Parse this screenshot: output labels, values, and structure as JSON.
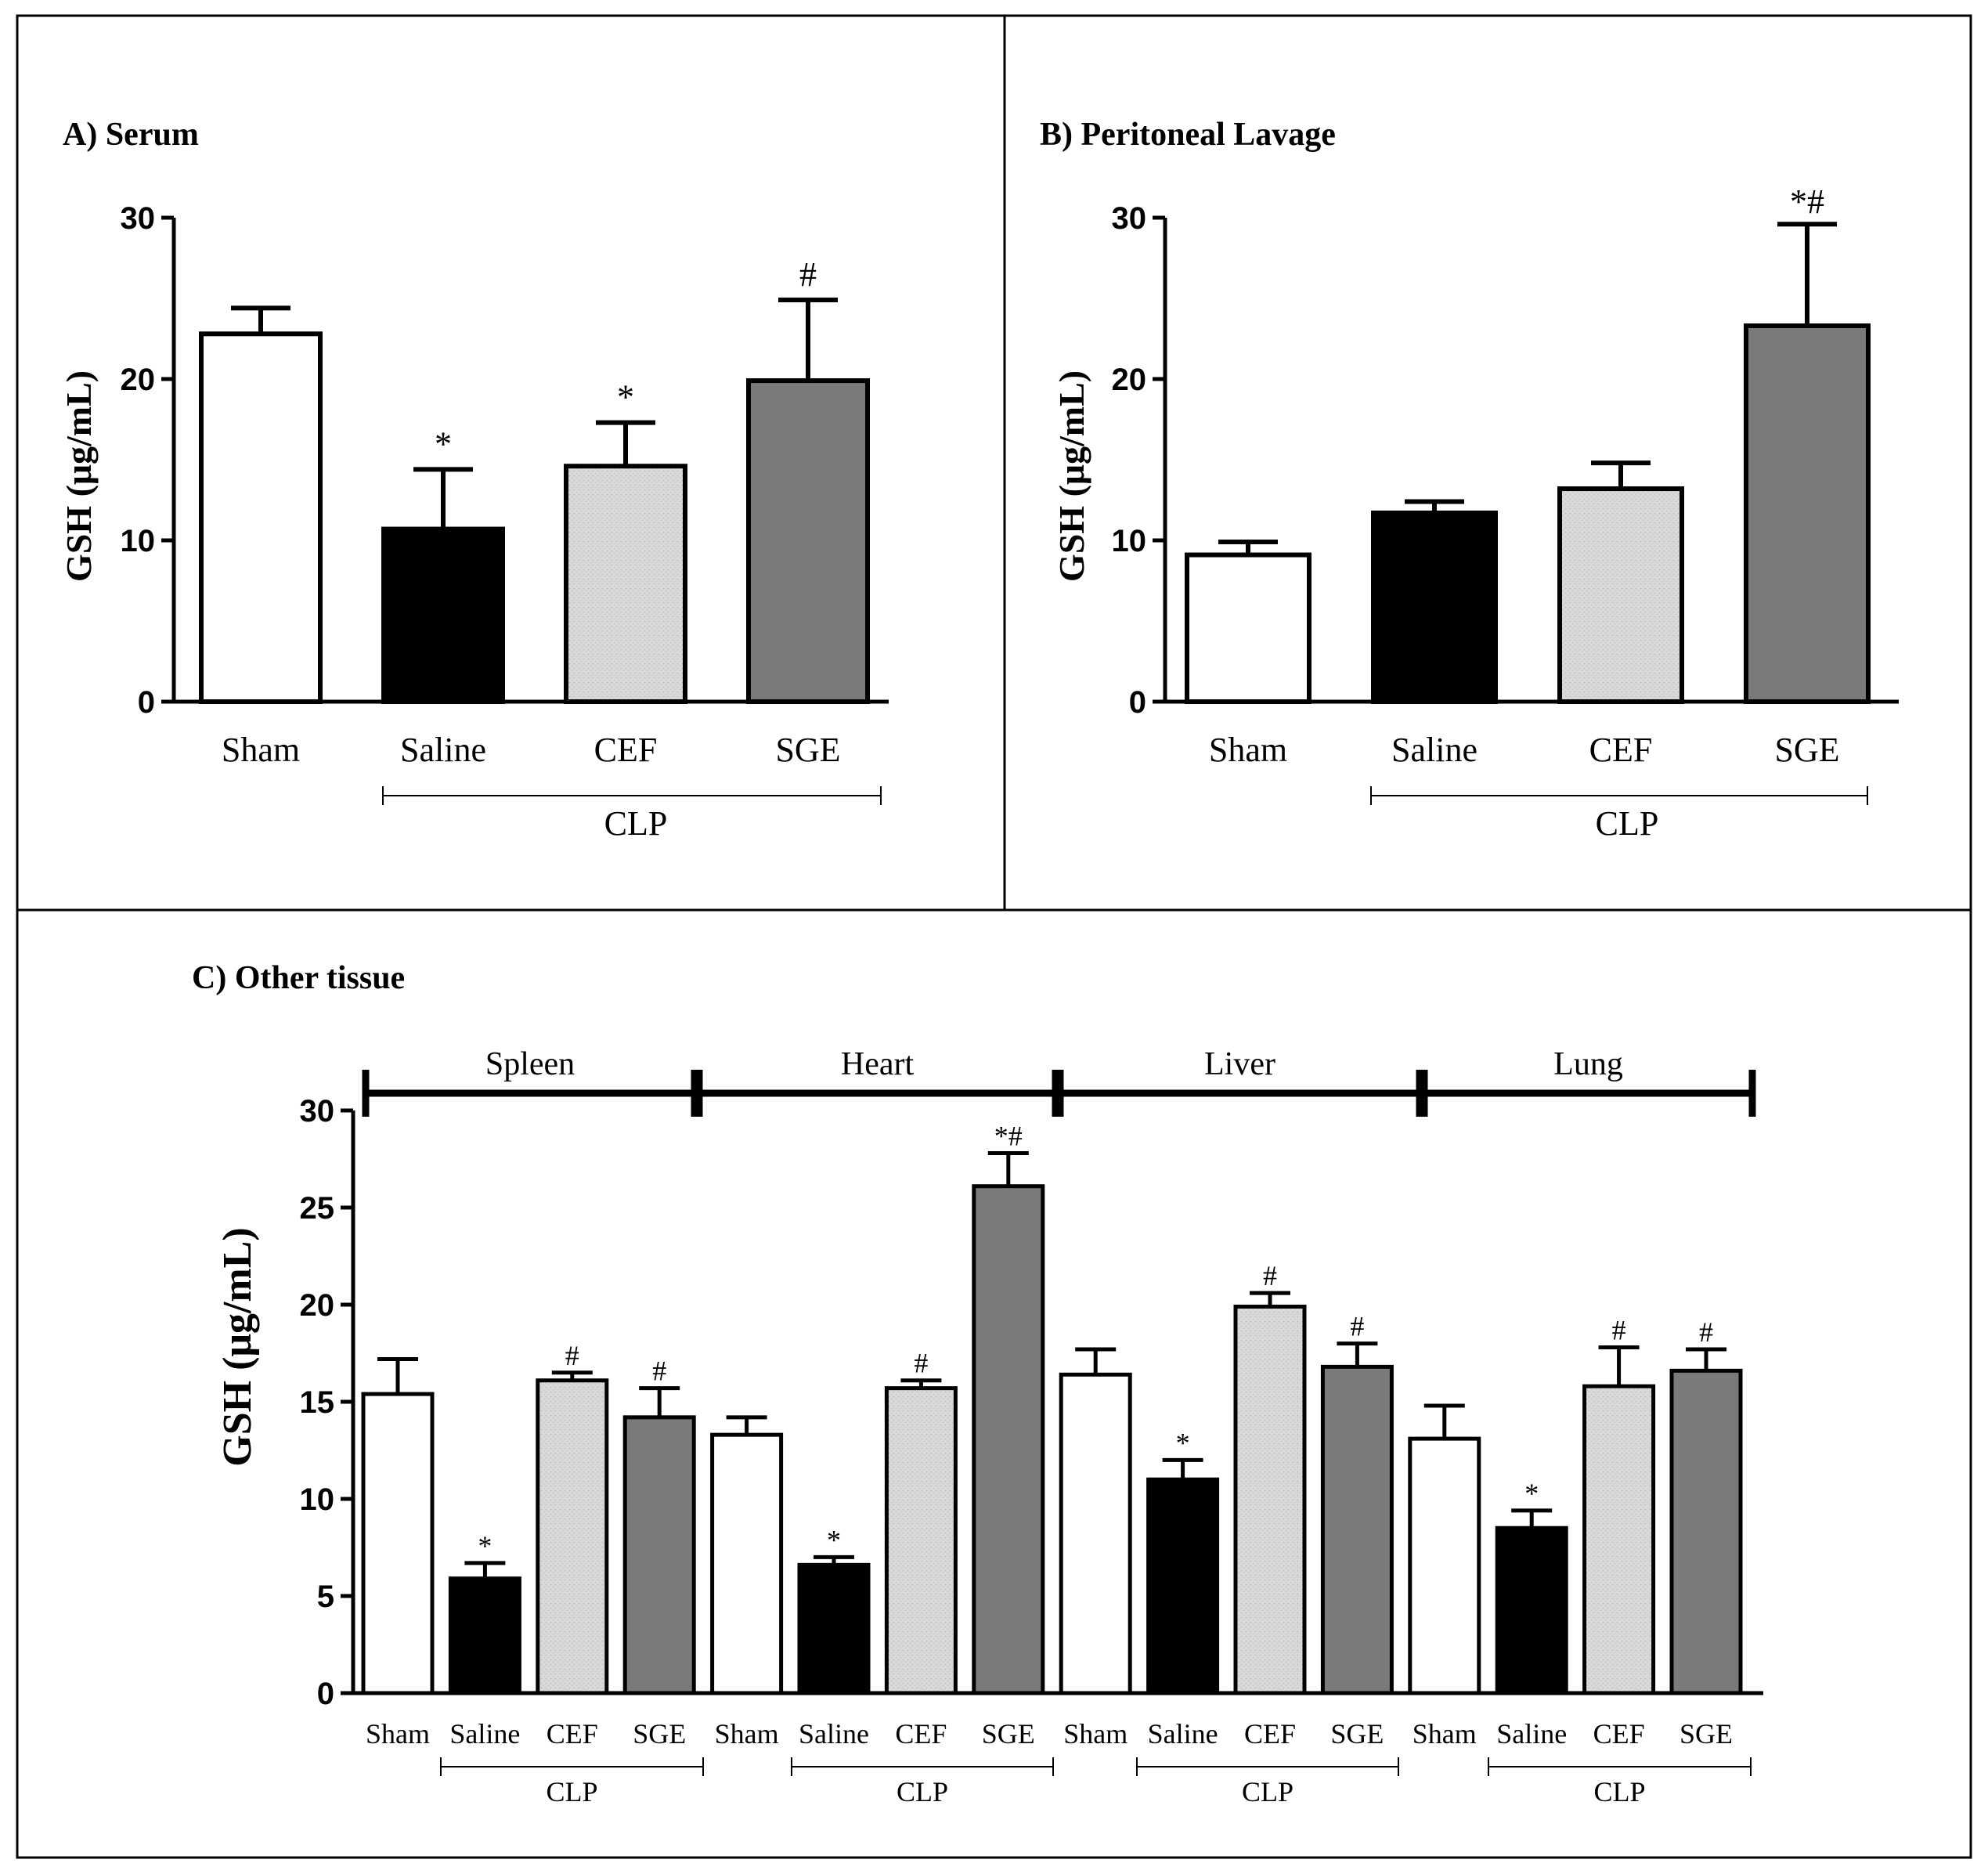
{
  "colors": {
    "sham": "#ffffff",
    "saline": "#000000",
    "cef": "#d9d9d9",
    "sge": "#7a7a7a",
    "ink": "#000000"
  },
  "chart_data": [
    {
      "type": "bar",
      "title": "A) Serum",
      "xlabel": "",
      "ylabel": "GSH (μg/mL)",
      "ylim": [
        0,
        30
      ],
      "yticks": [
        "0",
        "10",
        "20",
        "30"
      ],
      "categories": [
        "Sham",
        "Saline",
        "CEF",
        "SGE"
      ],
      "values": [
        22.8,
        10.7,
        14.6,
        19.9
      ],
      "errors": [
        1.6,
        3.7,
        2.7,
        5.0
      ],
      "annotations": [
        "",
        "*",
        "*",
        "#"
      ],
      "group_label": "CLP"
    },
    {
      "type": "bar",
      "title": "B) Peritoneal Lavage",
      "xlabel": "",
      "ylabel": "GSH (μg/mL)",
      "ylim": [
        0,
        30
      ],
      "yticks": [
        "0",
        "10",
        "20",
        "30"
      ],
      "categories": [
        "Sham",
        "Saline",
        "CEF",
        "SGE"
      ],
      "values": [
        9.1,
        11.7,
        13.2,
        23.3
      ],
      "errors": [
        0.8,
        0.7,
        1.6,
        6.3
      ],
      "annotations": [
        "",
        "",
        "",
        "*#"
      ],
      "group_label": "CLP"
    },
    {
      "type": "bar",
      "title": "C) Other tissue",
      "xlabel": "",
      "ylabel": "GSH (μg/mL)",
      "ylim": [
        0,
        30
      ],
      "yticks": [
        "0",
        "5",
        "10",
        "15",
        "20",
        "25",
        "30"
      ],
      "tissues": [
        "Spleen",
        "Heart",
        "Liver",
        "Lung"
      ],
      "categories": [
        "Sham",
        "Saline",
        "CEF",
        "SGE",
        "Sham",
        "Saline",
        "CEF",
        "SGE",
        "Sham",
        "Saline",
        "CEF",
        "SGE",
        "Sham",
        "Saline",
        "CEF",
        "SGE"
      ],
      "values": [
        15.4,
        5.9,
        16.1,
        14.2,
        13.3,
        6.6,
        15.7,
        26.1,
        16.4,
        11.0,
        19.9,
        16.8,
        13.1,
        8.5,
        15.8,
        16.6
      ],
      "errors": [
        1.8,
        0.8,
        0.4,
        1.5,
        0.9,
        0.4,
        0.4,
        1.7,
        1.3,
        1.0,
        0.7,
        1.2,
        1.7,
        0.9,
        2.0,
        1.1
      ],
      "annotations": [
        "",
        "*",
        "#",
        "#",
        "",
        "*",
        "#",
        "*#",
        "",
        "*",
        "#",
        "#",
        "",
        "*",
        "#",
        "#"
      ],
      "group_label": "CLP"
    }
  ]
}
